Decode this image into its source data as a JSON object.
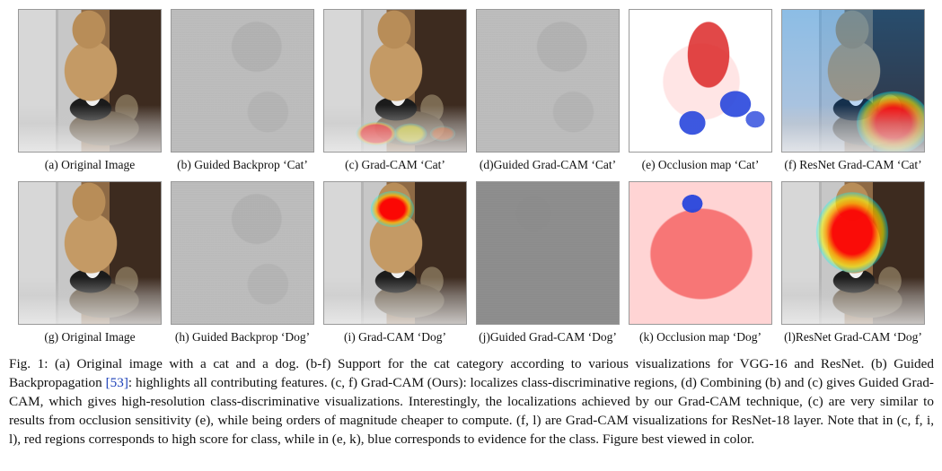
{
  "figure": {
    "panels": [
      {
        "caption": "(a) Original Image"
      },
      {
        "caption": "(b) Guided Backprop ‘Cat’"
      },
      {
        "caption": "(c) Grad-CAM ‘Cat’"
      },
      {
        "caption": "(d)Guided Grad-CAM ‘Cat’"
      },
      {
        "caption": "(e) Occlusion map ‘Cat’"
      },
      {
        "caption": "(f) ResNet Grad-CAM ‘Cat’"
      },
      {
        "caption": "(g) Original Image"
      },
      {
        "caption": "(h) Guided Backprop ‘Dog’"
      },
      {
        "caption": "(i) Grad-CAM ‘Dog’"
      },
      {
        "caption": "(j)Guided Grad-CAM ‘Dog’"
      },
      {
        "caption": "(k) Occlusion map ‘Dog’"
      },
      {
        "caption": "(l)ResNet Grad-CAM ‘Dog’"
      }
    ]
  },
  "caption": {
    "part1": "Fig. 1: (a) Original image with a cat and a dog. (b-f) Support for the cat category according to various visualizations for VGG-16 and ResNet. (b) Guided Backpropagation ",
    "ref": "[53]",
    "part2": ": highlights all contributing features. (c, f) Grad-CAM (Ours): localizes class-discriminative regions, (d) Combining (b) and (c) gives Guided Grad-CAM, which gives high-resolution class-discriminative visualizations. Interestingly, the localizations achieved by our Grad-CAM technique, (c) are very similar to results from occlusion sensitivity (e), while being orders of magnitude cheaper to compute. (f, l) are Grad-CAM visualizations for ResNet-18 layer. Note that in (c, f, i, l), red regions corresponds to high score for class, while in (e, k), blue corresponds to evidence for the class. Figure best viewed in color."
  },
  "colors": {
    "citation": "#1a3fb8"
  }
}
